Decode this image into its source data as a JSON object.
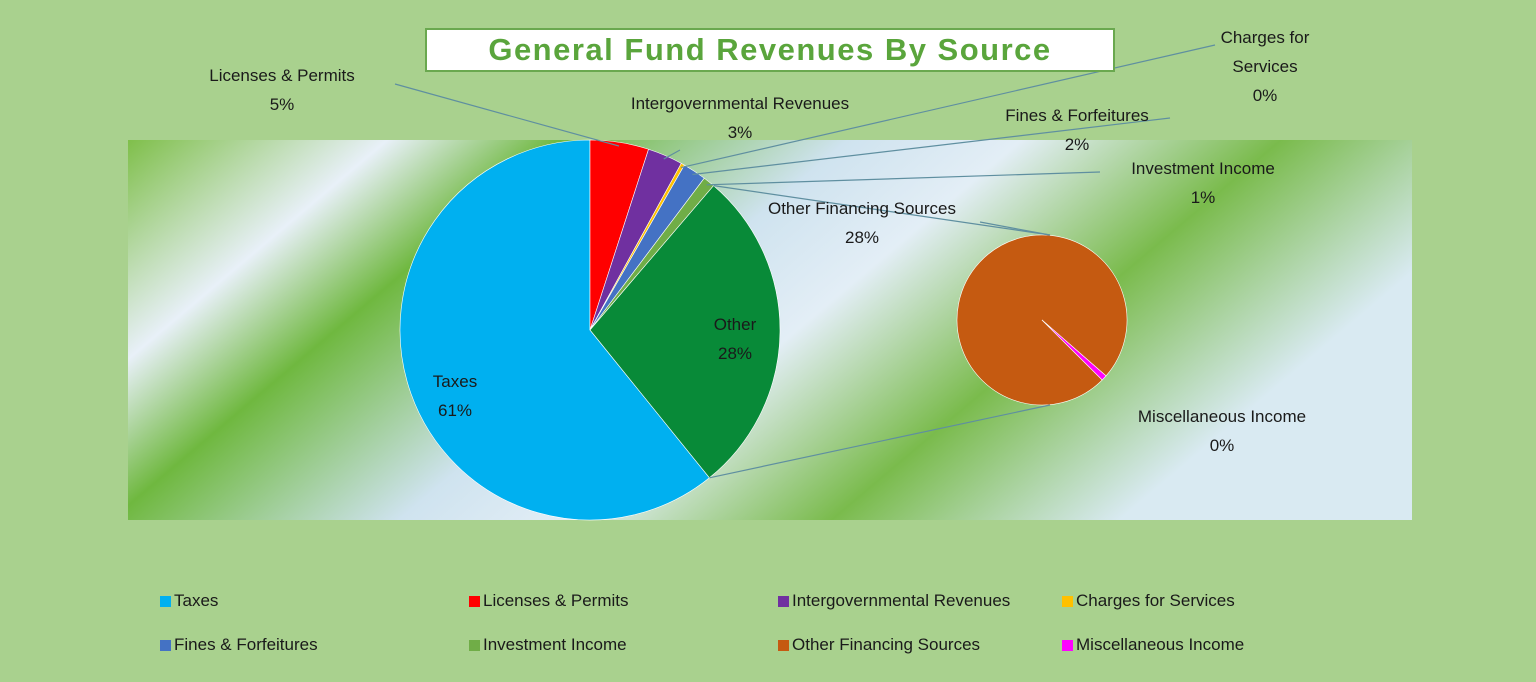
{
  "chart_data": {
    "type": "pie_of_pie",
    "title": "General Fund Revenues By Source",
    "categories": [
      "Taxes",
      "Licenses & Permits",
      "Intergovernmental Revenues",
      "Charges for Services",
      "Fines & Forfeitures",
      "Investment Income",
      "Other Financing Sources",
      "Miscellaneous Income"
    ],
    "values": [
      61,
      5,
      3,
      0.3,
      2,
      1,
      28,
      0.3
    ],
    "value_labels": [
      "61%",
      "5%",
      "3%",
      "0%",
      "2%",
      "1%",
      "28%",
      "0%"
    ],
    "colors": [
      "#00b0f0",
      "#ff0000",
      "#7030a0",
      "#ffc000",
      "#4472c4",
      "#70ad47",
      "#c55a11",
      "#ff00ff"
    ],
    "other": {
      "label": "Other",
      "value": 28,
      "value_label": "28%",
      "color": "#088a38"
    },
    "legend": "bottom"
  }
}
